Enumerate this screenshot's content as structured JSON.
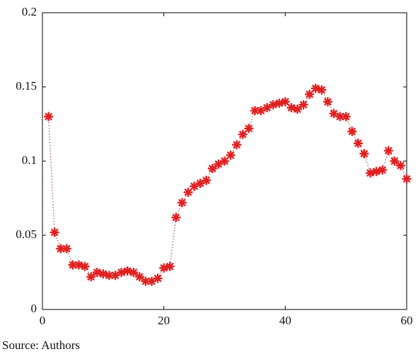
{
  "chart_data": {
    "type": "line",
    "caption": "Source: Authors",
    "x": [
      1,
      2,
      3,
      4,
      5,
      6,
      7,
      8,
      9,
      10,
      11,
      12,
      13,
      14,
      15,
      16,
      17,
      18,
      19,
      20,
      21,
      22,
      23,
      24,
      25,
      26,
      27,
      28,
      29,
      30,
      31,
      32,
      33,
      34,
      35,
      36,
      37,
      38,
      39,
      40,
      41,
      42,
      43,
      44,
      45,
      46,
      47,
      48,
      49,
      50,
      51,
      52,
      53,
      54,
      55,
      56,
      57,
      58,
      59,
      60
    ],
    "series": [
      {
        "color": "#e02020",
        "values": [
          0.13,
          0.052,
          0.041,
          0.041,
          0.03,
          0.03,
          0.029,
          0.022,
          0.025,
          0.024,
          0.023,
          0.023,
          0.025,
          0.026,
          0.025,
          0.022,
          0.019,
          0.019,
          0.021,
          0.028,
          0.029,
          0.062,
          0.072,
          0.079,
          0.083,
          0.085,
          0.087,
          0.095,
          0.098,
          0.1,
          0.104,
          0.111,
          0.118,
          0.122,
          0.134,
          0.134,
          0.136,
          0.138,
          0.139,
          0.14,
          0.136,
          0.135,
          0.138,
          0.145,
          0.149,
          0.148,
          0.14,
          0.132,
          0.13,
          0.13,
          0.12,
          0.112,
          0.105,
          0.092,
          0.093,
          0.094,
          0.107,
          0.1,
          0.097,
          0.088
        ]
      }
    ],
    "line_color": "#a05050",
    "xlim": [
      0,
      60
    ],
    "xticks": [
      0,
      20,
      40,
      60
    ],
    "ylim": [
      0,
      0.2
    ],
    "yticks": [
      0,
      0.05,
      0.1,
      0.15,
      0.2
    ]
  }
}
